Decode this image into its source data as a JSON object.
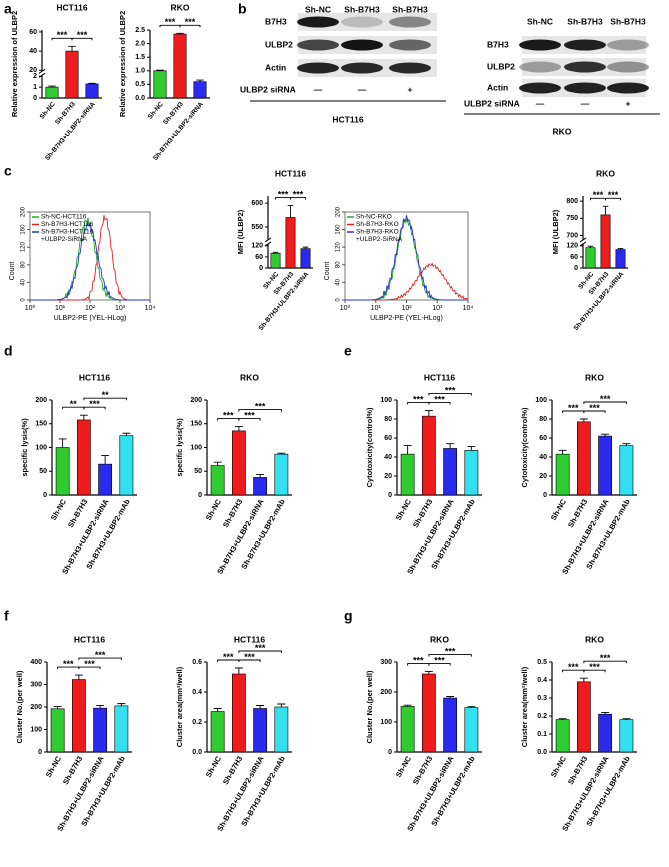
{
  "panel_labels": [
    "a",
    "b",
    "c",
    "d",
    "e",
    "f",
    "g"
  ],
  "chart_data": [
    {
      "type": "bar",
      "title": "HCT116",
      "ylabel": "Relative expression of ULBP2",
      "categories": [
        "Sh-NC",
        "Sh-B7H3",
        "Sh-B7H3+ULBP2-siRNA"
      ],
      "values": [
        1.0,
        40,
        1.3
      ],
      "errors": [
        0.1,
        5,
        0.05
      ],
      "colors": [
        "#2ecc2e",
        "#ee1c1c",
        "#2a2aee"
      ],
      "ylim": [
        0,
        62
      ],
      "ybreak": [
        2,
        20
      ],
      "yticks": [
        0,
        1,
        2,
        20,
        40,
        60
      ],
      "brackets": [
        {
          "from": 0,
          "to": 1,
          "label": "***"
        },
        {
          "from": 1,
          "to": 2,
          "label": "***"
        }
      ]
    },
    {
      "type": "bar",
      "title": "RKO",
      "ylabel": "Relative expression of ULBP2",
      "categories": [
        "Sh-NC",
        "Sh-B7H3",
        "Sh-B7H3+ULBP2-siRNA"
      ],
      "values": [
        1.0,
        2.35,
        0.6
      ],
      "errors": [
        0.02,
        0.03,
        0.06
      ],
      "colors": [
        "#2ecc2e",
        "#ee1c1c",
        "#2a2aee"
      ],
      "ylim": [
        0,
        2.5
      ],
      "yticks": [
        {
          "value": 0,
          "label": "0.0"
        },
        0.5,
        {
          "value": 1,
          "label": "1.0"
        },
        1.5,
        {
          "value": 2,
          "label": "2.0"
        },
        2.5
      ],
      "brackets": [
        {
          "from": 0,
          "to": 1,
          "label": "***"
        },
        {
          "from": 1,
          "to": 2,
          "label": "***"
        }
      ]
    },
    {
      "type": "bar",
      "title": "HCT116",
      "ylabel": "MFI (ULBP2)",
      "categories": [
        "Sh-NC",
        "Sh-B7H3",
        "Sh-B7H3+ULBP2-siRNA"
      ],
      "values": [
        80,
        570,
        105
      ],
      "errors": [
        5,
        25,
        8
      ],
      "colors": [
        "#2ecc2e",
        "#ee1c1c",
        "#2a2aee"
      ],
      "ylim": [
        0,
        615
      ],
      "ybreak": [
        125,
        525
      ],
      "yticks": [
        0,
        60,
        120,
        550,
        600
      ],
      "brackets": [
        {
          "from": 0,
          "to": 1,
          "label": "***"
        },
        {
          "from": 1,
          "to": 2,
          "label": "***"
        }
      ]
    },
    {
      "type": "bar",
      "title": "RKO",
      "ylabel": "MFI (ULBP2)",
      "categories": [
        "Sh-NC",
        "Sh-B7H3",
        "Sh-B7H3+ULBP2-siRNA"
      ],
      "values": [
        110,
        760,
        100
      ],
      "errors": [
        8,
        25,
        6
      ],
      "colors": [
        "#2ecc2e",
        "#ee1c1c",
        "#2a2aee"
      ],
      "ylim": [
        0,
        815
      ],
      "ybreak": [
        125,
        690
      ],
      "yticks": [
        0,
        60,
        120,
        700,
        750,
        800
      ],
      "brackets": [
        {
          "from": 0,
          "to": 1,
          "label": "***"
        },
        {
          "from": 1,
          "to": 2,
          "label": "***"
        }
      ]
    },
    {
      "type": "bar",
      "title": "HCT116",
      "ylabel": "specific lysis(%)",
      "categories": [
        "Sh-NC",
        "Sh-B7H3",
        "Sh-B7H3+ULBP2-siRNA",
        "Sh-B7H3+ULBP2-mAb"
      ],
      "values": [
        100,
        158,
        65,
        125
      ],
      "errors": [
        18,
        10,
        18,
        5
      ],
      "colors": [
        "#2ecc2e",
        "#ee1c1c",
        "#2a2aee",
        "#33e0f0"
      ],
      "ylim": [
        0,
        200
      ],
      "yticks": [
        0,
        50,
        100,
        150,
        200
      ],
      "brackets": [
        {
          "from": 0,
          "to": 1,
          "label": "**"
        },
        {
          "from": 1,
          "to": 2,
          "label": "***"
        },
        {
          "from": 1,
          "to": 3,
          "label": "**"
        }
      ]
    },
    {
      "type": "bar",
      "title": "RKO",
      "ylabel": "specific lysis(%)",
      "categories": [
        "Sh-NC",
        "Sh-B7H3",
        "Sh-B7H3+ULBP2-siRNA",
        "Sh-B7H3+ULBP2-mAb"
      ],
      "values": [
        62,
        135,
        37,
        86
      ],
      "errors": [
        7,
        9,
        6,
        2
      ],
      "colors": [
        "#2ecc2e",
        "#ee1c1c",
        "#2a2aee",
        "#33e0f0"
      ],
      "ylim": [
        0,
        200
      ],
      "yticks": [
        0,
        50,
        100,
        150,
        200
      ],
      "brackets": [
        {
          "from": 0,
          "to": 1,
          "label": "***"
        },
        {
          "from": 1,
          "to": 2,
          "label": "***"
        },
        {
          "from": 1,
          "to": 3,
          "label": "***"
        }
      ]
    },
    {
      "type": "bar",
      "title": "HCT116",
      "ylabel": "Cytotoxicity(control%)",
      "categories": [
        "Sh-NC",
        "Sh-B7H3",
        "Sh-B7H3+ULBP2-siRNA",
        "Sh-B7H3+ULBP2-mAb"
      ],
      "values": [
        43,
        83,
        49,
        47
      ],
      "errors": [
        9,
        6,
        5,
        4
      ],
      "colors": [
        "#2ecc2e",
        "#ee1c1c",
        "#2a2aee",
        "#33e0f0"
      ],
      "ylim": [
        0,
        100
      ],
      "yticks": [
        0,
        20,
        40,
        60,
        80,
        100
      ],
      "brackets": [
        {
          "from": 0,
          "to": 1,
          "label": "***"
        },
        {
          "from": 1,
          "to": 2,
          "label": "***"
        },
        {
          "from": 1,
          "to": 3,
          "label": "***"
        }
      ]
    },
    {
      "type": "bar",
      "title": "RKO",
      "ylabel": "Cytotoxicity(control%)",
      "categories": [
        "Sh-NC",
        "Sh-B7H3",
        "Sh-B7H3+ULBP2-siRNA",
        "Sh-B7H3+ULBP2-mAb"
      ],
      "values": [
        43,
        77,
        62,
        52
      ],
      "errors": [
        4,
        3,
        2,
        2
      ],
      "colors": [
        "#2ecc2e",
        "#ee1c1c",
        "#2a2aee",
        "#33e0f0"
      ],
      "ylim": [
        0,
        100
      ],
      "yticks": [
        0,
        20,
        40,
        60,
        80,
        100
      ],
      "brackets": [
        {
          "from": 0,
          "to": 1,
          "label": "***"
        },
        {
          "from": 1,
          "to": 2,
          "label": "***"
        },
        {
          "from": 1,
          "to": 3,
          "label": "***"
        }
      ]
    },
    {
      "type": "bar",
      "title": "HCT116",
      "ylabel": "Cluster No.(per well)",
      "categories": [
        "Sh-NC",
        "Sh-B7H3",
        "Sh-B7H3+ULBP2-siRNA",
        "Sh-B7H3+ULBP2-mAb"
      ],
      "values": [
        192,
        322,
        195,
        205
      ],
      "errors": [
        10,
        20,
        12,
        10
      ],
      "colors": [
        "#2ecc2e",
        "#ee1c1c",
        "#2a2aee",
        "#33e0f0"
      ],
      "ylim": [
        0,
        400
      ],
      "yticks": [
        0,
        100,
        200,
        300,
        400
      ],
      "brackets": [
        {
          "from": 0,
          "to": 1,
          "label": "***"
        },
        {
          "from": 1,
          "to": 2,
          "label": "***"
        },
        {
          "from": 1,
          "to": 3,
          "label": "***"
        }
      ]
    },
    {
      "type": "bar",
      "title": "HCT116",
      "ylabel": "Cluster area(mm²/well)",
      "categories": [
        "Sh-NC",
        "Sh-B7H3",
        "Sh-B7H3+ULBP2-siRNA",
        "Sh-B7H3+ULBP2-mAb"
      ],
      "values": [
        0.27,
        0.52,
        0.29,
        0.3
      ],
      "errors": [
        0.02,
        0.04,
        0.02,
        0.02
      ],
      "colors": [
        "#2ecc2e",
        "#ee1c1c",
        "#2a2aee",
        "#33e0f0"
      ],
      "ylim": [
        0,
        0.6
      ],
      "yticks": [
        {
          "value": 0,
          "label": "0.0"
        },
        0.2,
        0.4,
        0.6
      ],
      "brackets": [
        {
          "from": 0,
          "to": 1,
          "label": "***"
        },
        {
          "from": 1,
          "to": 2,
          "label": "***"
        },
        {
          "from": 1,
          "to": 3,
          "label": "***"
        }
      ]
    },
    {
      "type": "bar",
      "title": "RKO",
      "ylabel": "Cluster No.(per well)",
      "categories": [
        "Sh-NC",
        "Sh-B7H3",
        "Sh-B7H3+ULBP2-siRNA",
        "Sh-B7H3+ULBP2-mAb"
      ],
      "values": [
        152,
        260,
        180,
        148
      ],
      "errors": [
        4,
        8,
        5,
        3
      ],
      "colors": [
        "#2ecc2e",
        "#ee1c1c",
        "#2a2aee",
        "#33e0f0"
      ],
      "ylim": [
        0,
        300
      ],
      "yticks": [
        0,
        100,
        200,
        300
      ],
      "brackets": [
        {
          "from": 0,
          "to": 1,
          "label": "***"
        },
        {
          "from": 1,
          "to": 2,
          "label": "***"
        },
        {
          "from": 1,
          "to": 3,
          "label": "***"
        }
      ]
    },
    {
      "type": "bar",
      "title": "RKO",
      "ylabel": "Cluster area(mm²/well)",
      "categories": [
        "Sh-NC",
        "Sh-B7H3",
        "Sh-B7H3+ULBP2-siRNA",
        "Sh-B7H3+ULBP2-mAb"
      ],
      "values": [
        0.18,
        0.39,
        0.21,
        0.18
      ],
      "errors": [
        0.005,
        0.02,
        0.01,
        0.005
      ],
      "colors": [
        "#2ecc2e",
        "#ee1c1c",
        "#2a2aee",
        "#33e0f0"
      ],
      "ylim": [
        0,
        0.5
      ],
      "yticks": [
        {
          "value": 0,
          "label": "0.0"
        },
        0.1,
        0.2,
        0.3,
        0.4,
        0.5
      ],
      "brackets": [
        {
          "from": 0,
          "to": 1,
          "label": "***"
        },
        {
          "from": 1,
          "to": 2,
          "label": "***"
        },
        {
          "from": 1,
          "to": 3,
          "label": "***"
        }
      ]
    }
  ],
  "blots": [
    {
      "columns": [
        "Sh-NC",
        "Sh-B7H3",
        "Sh-B7H3"
      ],
      "rows": [
        "B7H3",
        "ULBP2",
        "Actin"
      ],
      "treatment_label": "ULBP2 siRNA",
      "treatment": [
        "—",
        "—",
        "+"
      ],
      "cell_line": "HCT116"
    },
    {
      "columns": [
        "Sh-NC",
        "Sh-B7H3",
        "Sh-B7H3"
      ],
      "rows": [
        "B7H3",
        "ULBP2",
        "Actin"
      ],
      "treatment_label": "ULBP2 siRNA",
      "treatment": [
        "—",
        "—",
        "+"
      ],
      "cell_line": "RKO"
    }
  ],
  "flow": [
    {
      "legend": [
        {
          "lines": [
            "Sh-NC-HCT116"
          ],
          "color": "#22aa22"
        },
        {
          "lines": [
            "Sh-B7H3-HCT116"
          ],
          "color": "#dd2222"
        },
        {
          "lines": [
            "Sh-B7H3-HCT116",
            "+ULBP2-SiRNA"
          ],
          "color": "#2233cc"
        }
      ],
      "ylabel": "Count",
      "xlabel": "ULBP2-PE (YEL-HLog)",
      "xlog": true,
      "xlim": [
        1,
        10000
      ],
      "xticks": [
        {
          "value": 1,
          "label": "10⁰"
        },
        {
          "value": 10,
          "label": "10¹"
        },
        {
          "value": 100,
          "label": "10²"
        },
        {
          "value": 1000,
          "label": "10³"
        },
        {
          "value": 10000,
          "label": "10⁴"
        }
      ],
      "ylim": [
        0,
        200
      ],
      "yticks": [
        0,
        40,
        80,
        120,
        160,
        200
      ]
    },
    {
      "legend": [
        {
          "lines": [
            "Sh-NC-RKO"
          ],
          "color": "#22aa22"
        },
        {
          "lines": [
            "Sh-B7H3-RKO"
          ],
          "color": "#dd2222"
        },
        {
          "lines": [
            "Sh-B7H3-RKO",
            "+ULBP2-SiRNA"
          ],
          "color": "#2233cc"
        }
      ],
      "ylabel": "Count",
      "xlabel": "ULBP2-PE (YEL-HLog)",
      "xlog": true,
      "xlim": [
        1,
        10000
      ],
      "xticks": [
        {
          "value": 1,
          "label": "10⁰"
        },
        {
          "value": 10,
          "label": "10¹"
        },
        {
          "value": 100,
          "label": "10²"
        },
        {
          "value": 1000,
          "label": "10³"
        },
        {
          "value": 10000,
          "label": "10⁴"
        }
      ],
      "ylim": [
        0,
        200
      ],
      "yticks": [
        0,
        40,
        80,
        120,
        160,
        200
      ]
    }
  ]
}
